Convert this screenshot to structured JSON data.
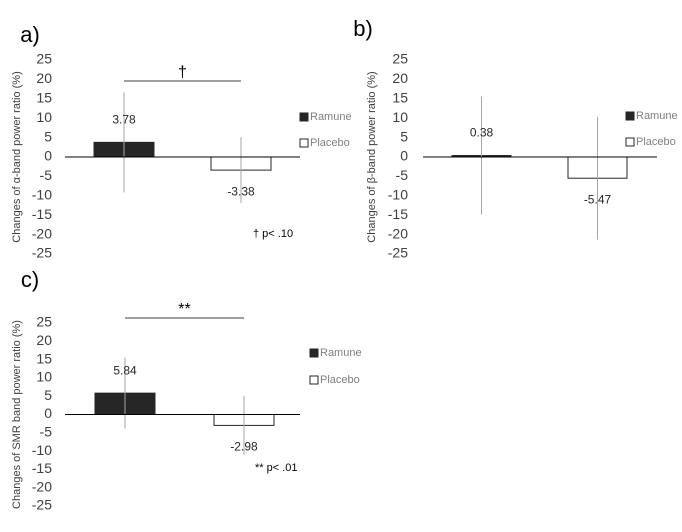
{
  "chart_data": [
    {
      "type": "bar",
      "panel": "a)",
      "y_label": "Changes of α-band power ratio (%)",
      "categories": [
        null
      ],
      "series": [
        {
          "name": "Ramune",
          "color": "#262626",
          "values": [
            3.78
          ],
          "errors": [
            12.9
          ]
        },
        {
          "name": "Placebo",
          "color": "#ffffff",
          "values": [
            -3.38
          ],
          "errors": [
            8.5
          ]
        }
      ],
      "ylim": [
        -25,
        25
      ],
      "yticks": [
        -25,
        -20,
        -15,
        -10,
        -5,
        0,
        5,
        10,
        15,
        20,
        25
      ],
      "significance": "†",
      "note": "† p< .10"
    },
    {
      "type": "bar",
      "panel": "b)",
      "y_label": "Changes of β-band power ratio (%)",
      "categories": [
        null
      ],
      "series": [
        {
          "name": "Ramune",
          "color": "#262626",
          "values": [
            0.38
          ],
          "errors": [
            15.2
          ]
        },
        {
          "name": "Placebo",
          "color": "#ffffff",
          "values": [
            -5.47
          ],
          "errors": [
            15.8
          ]
        }
      ],
      "ylim": [
        -25,
        25
      ],
      "yticks": [
        -25,
        -20,
        -15,
        -10,
        -5,
        0,
        5,
        10,
        15,
        20,
        25
      ]
    },
    {
      "type": "bar",
      "panel": "c)",
      "y_label": "Changes of SMR band power ratio (%)",
      "categories": [
        null
      ],
      "series": [
        {
          "name": "Ramune",
          "color": "#262626",
          "values": [
            5.84
          ],
          "errors": [
            9.7
          ]
        },
        {
          "name": "Placebo",
          "color": "#ffffff",
          "values": [
            -2.98
          ],
          "errors": [
            8.1
          ]
        }
      ],
      "ylim": [
        -25,
        25
      ],
      "yticks": [
        -25,
        -20,
        -15,
        -10,
        -5,
        0,
        5,
        10,
        15,
        20,
        25
      ],
      "significance": "**",
      "note": "** p< .01"
    }
  ]
}
